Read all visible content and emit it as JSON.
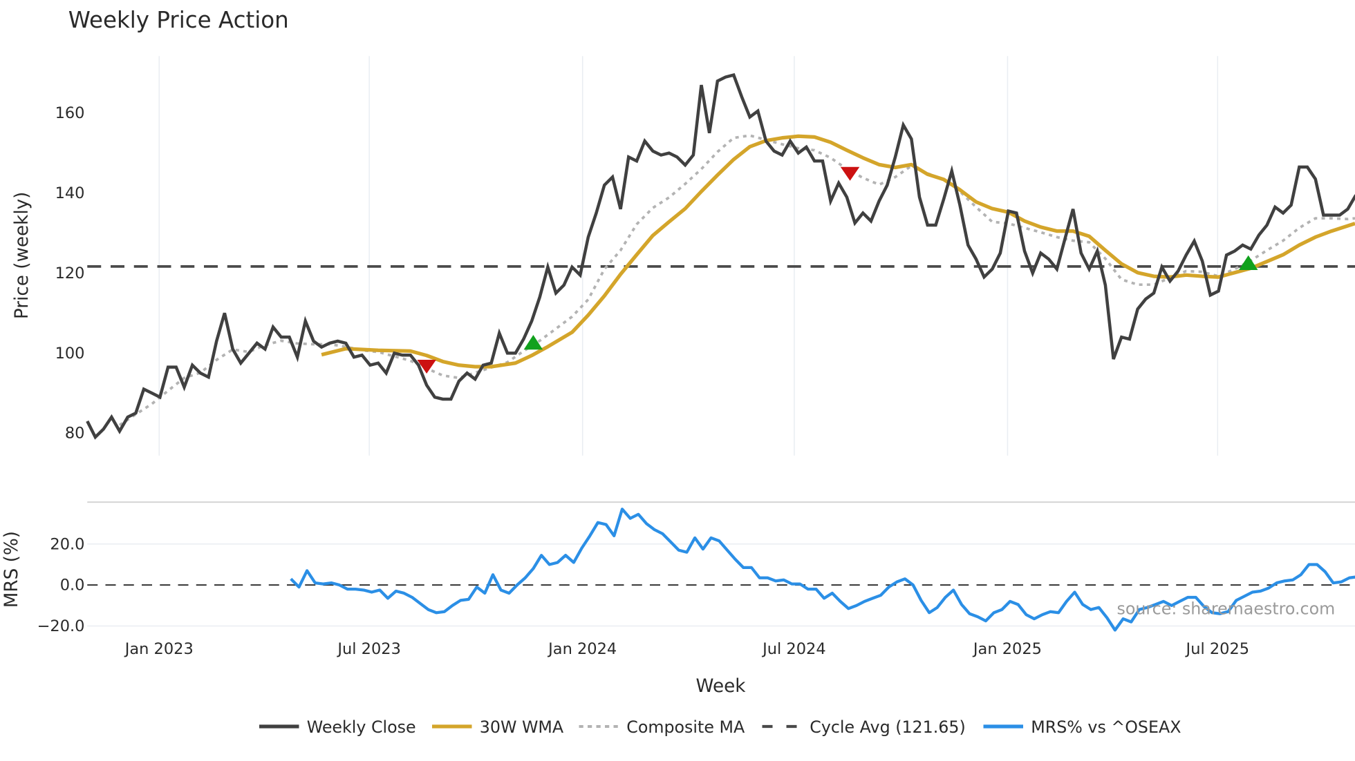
{
  "title": "Weekly Price Action",
  "source_note": "source: sharemaestro.com",
  "xaxis": {
    "label": "Week",
    "ticks": [
      {
        "label": "Jan 2023",
        "week_index": 8.9
      },
      {
        "label": "Jul 2023",
        "week_index": 34.9
      },
      {
        "label": "Jan 2024",
        "week_index": 61.3
      },
      {
        "label": "Jul 2024",
        "week_index": 87.5
      },
      {
        "label": "Jan 2025",
        "week_index": 113.9
      },
      {
        "label": "Jul 2025",
        "week_index": 139.9
      }
    ]
  },
  "price_axis": {
    "label": "Price (weekly)",
    "ticks": [
      "80",
      "100",
      "120",
      "140",
      "160"
    ]
  },
  "mrs_axis": {
    "label": "MRS (%)",
    "ticks": [
      "−20.0",
      "0.0",
      "20.0"
    ]
  },
  "legend": [
    {
      "label": "Weekly Close",
      "color": "#404040",
      "style": "solid"
    },
    {
      "label": "30W WMA",
      "color": "#d4a52a",
      "style": "solid"
    },
    {
      "label": "Composite MA",
      "color": "#b3b3b3",
      "style": "dotted"
    },
    {
      "label": "Cycle Avg (121.65)",
      "color": "#4a4a4a",
      "style": "dashed"
    },
    {
      "label": "MRS% vs ^OSEAX",
      "color": "#2b8fe6",
      "style": "solid"
    }
  ],
  "chart_data": [
    {
      "type": "line",
      "title": "Weekly Price Action",
      "xlabel": "Week",
      "ylabel": "Price (weekly)",
      "ylim": [
        75,
        175
      ],
      "x_range": [
        "Nov 2022",
        "Oct 2025"
      ],
      "grid": true,
      "legend_position": "bottom",
      "series": [
        {
          "name": "Weekly Close",
          "color": "#404040",
          "start_index": 0,
          "values": [
            83,
            79,
            81,
            84,
            80.5,
            84,
            85,
            91,
            90,
            89,
            96.5,
            96.5,
            91.5,
            97,
            95,
            94,
            103,
            110,
            101,
            97.5,
            100,
            102.5,
            101,
            106.5,
            104,
            104,
            99,
            108,
            103,
            101.5,
            102.5,
            103,
            102.5,
            99,
            99.5,
            97,
            97.5,
            95,
            100,
            99.5,
            99.5,
            97,
            92,
            89,
            88.5,
            88.5,
            93,
            95,
            93.5,
            97,
            97.5,
            105,
            100,
            100,
            103.5,
            108,
            114,
            121.5,
            115,
            117,
            121.5,
            119.5,
            129,
            135,
            142,
            144,
            136,
            149,
            148,
            153,
            150.5,
            149.5,
            150,
            149,
            147,
            149.5,
            167,
            155,
            168,
            169,
            169.5,
            164,
            159,
            160.5,
            153,
            150.5,
            149.5,
            153,
            150,
            151.5,
            148,
            148,
            138,
            142.5,
            139,
            132.5,
            135,
            133,
            138,
            142,
            149,
            157,
            153.5,
            139,
            132,
            132,
            138.5,
            145.5,
            137,
            127,
            123.5,
            119,
            121,
            125,
            135.5,
            135,
            125.5,
            120,
            125,
            123.5,
            121,
            128.5,
            136,
            125,
            121,
            125.5,
            117,
            98.5,
            104,
            103.5,
            111,
            113.5,
            115,
            121.5,
            118,
            120.5,
            124.5,
            128,
            123,
            114.5,
            115.5,
            124.5,
            125.5,
            127,
            126,
            129.5,
            132,
            136.5,
            135,
            137,
            146.5,
            146.5,
            143.5,
            134.5,
            134.5,
            134.5,
            136,
            139.5
          ]
        },
        {
          "name": "30W WMA",
          "color": "#d4a52a",
          "points": [
            [
              29,
              99.6
            ],
            [
              32,
              101.1
            ],
            [
              36,
              100.7
            ],
            [
              40,
              100.5
            ],
            [
              42,
              99.4
            ],
            [
              44,
              97.9
            ],
            [
              46,
              97
            ],
            [
              48,
              96.6
            ],
            [
              50,
              96.6
            ],
            [
              53,
              97.5
            ],
            [
              55,
              99.4
            ],
            [
              57,
              101.6
            ],
            [
              60,
              105.2
            ],
            [
              62,
              109.5
            ],
            [
              64,
              114.3
            ],
            [
              66,
              119.7
            ],
            [
              68,
              124.6
            ],
            [
              70,
              129.4
            ],
            [
              72,
              132.8
            ],
            [
              74,
              136.1
            ],
            [
              76,
              140.4
            ],
            [
              78,
              144.5
            ],
            [
              80,
              148.4
            ],
            [
              82,
              151.6
            ],
            [
              84,
              153.1
            ],
            [
              86,
              153.8
            ],
            [
              88,
              154.2
            ],
            [
              90,
              154
            ],
            [
              92,
              152.7
            ],
            [
              94,
              150.7
            ],
            [
              96,
              148.8
            ],
            [
              98,
              147.1
            ],
            [
              100,
              146.4
            ],
            [
              102,
              147.1
            ],
            [
              104,
              144.7
            ],
            [
              106,
              143.4
            ],
            [
              108,
              140.8
            ],
            [
              110,
              137.8
            ],
            [
              112,
              136.1
            ],
            [
              114,
              135.2
            ],
            [
              116,
              133
            ],
            [
              118,
              131.5
            ],
            [
              120,
              130.5
            ],
            [
              122,
              130.5
            ],
            [
              124,
              129.2
            ],
            [
              126,
              125.7
            ],
            [
              128,
              122.3
            ],
            [
              130,
              120.1
            ],
            [
              132,
              119.2
            ],
            [
              134,
              119
            ],
            [
              136,
              119.5
            ],
            [
              138,
              119.2
            ],
            [
              140,
              119
            ],
            [
              142,
              120.1
            ],
            [
              144,
              121.2
            ],
            [
              146,
              122.9
            ],
            [
              148,
              124.6
            ],
            [
              150,
              127
            ],
            [
              152,
              129
            ],
            [
              154,
              130.5
            ],
            [
              156.9,
              132.4
            ]
          ]
        },
        {
          "name": "Composite MA",
          "color": "#b3b3b3",
          "points": [
            [
              4,
              82
            ],
            [
              6,
              84.7
            ],
            [
              8,
              87.3
            ],
            [
              10,
              90.6
            ],
            [
              12,
              93.8
            ],
            [
              14,
              95.1
            ],
            [
              16,
              98.3
            ],
            [
              18,
              100.9
            ],
            [
              20,
              100.3
            ],
            [
              22,
              102
            ],
            [
              24,
              103.1
            ],
            [
              26,
              102.4
            ],
            [
              28,
              102.2
            ],
            [
              30,
              102.2
            ],
            [
              32,
              101.6
            ],
            [
              34,
              100.7
            ],
            [
              36,
              100.3
            ],
            [
              38,
              99.2
            ],
            [
              40,
              98.1
            ],
            [
              42,
              96.2
            ],
            [
              44,
              94.4
            ],
            [
              46,
              93.8
            ],
            [
              48,
              95.1
            ],
            [
              50,
              96.4
            ],
            [
              52,
              97.7
            ],
            [
              54,
              100.5
            ],
            [
              56,
              103.1
            ],
            [
              58,
              106.1
            ],
            [
              60,
              109.1
            ],
            [
              62,
              113.4
            ],
            [
              64,
              121
            ],
            [
              66,
              125.7
            ],
            [
              68,
              132.2
            ],
            [
              70,
              136.3
            ],
            [
              72,
              138.9
            ],
            [
              74,
              142.3
            ],
            [
              76,
              146
            ],
            [
              78,
              150.3
            ],
            [
              80,
              153.8
            ],
            [
              82,
              154.4
            ],
            [
              84,
              153.3
            ],
            [
              86,
              152.2
            ],
            [
              88,
              151.2
            ],
            [
              90,
              150.7
            ],
            [
              92,
              148.8
            ],
            [
              94,
              146
            ],
            [
              96,
              143.8
            ],
            [
              98,
              142.1
            ],
            [
              100,
              144
            ],
            [
              102,
              146.8
            ],
            [
              104,
              144.9
            ],
            [
              106,
              143.4
            ],
            [
              108,
              140.4
            ],
            [
              110,
              136.5
            ],
            [
              112,
              132.8
            ],
            [
              114,
              132.4
            ],
            [
              116,
              131.3
            ],
            [
              118,
              130.2
            ],
            [
              120,
              129
            ],
            [
              122,
              128.1
            ],
            [
              124,
              127.7
            ],
            [
              126,
              123.6
            ],
            [
              128,
              118.4
            ],
            [
              130,
              117.1
            ],
            [
              132,
              117.1
            ],
            [
              134,
              118.8
            ],
            [
              136,
              120.5
            ],
            [
              138,
              120.3
            ],
            [
              140,
              119.2
            ],
            [
              142,
              121
            ],
            [
              144,
              123.1
            ],
            [
              146,
              125.7
            ],
            [
              148,
              128.1
            ],
            [
              150,
              131.3
            ],
            [
              152,
              133.7
            ],
            [
              154,
              133.7
            ],
            [
              156,
              133.5
            ],
            [
              156.9,
              133.7
            ]
          ]
        },
        {
          "name": "Cycle Avg (121.65)",
          "color": "#4a4a4a",
          "constant": 121.65
        }
      ],
      "signals": [
        {
          "type": "sell",
          "marker": "down-triangle",
          "color": "#cc1111",
          "week_index": 42.0,
          "value": 96.6
        },
        {
          "type": "buy",
          "marker": "up-triangle",
          "color": "#11a11d",
          "week_index": 55.2,
          "value": 102.6
        },
        {
          "type": "sell",
          "marker": "down-triangle",
          "color": "#cc1111",
          "week_index": 94.4,
          "value": 144.8
        },
        {
          "type": "buy",
          "marker": "up-triangle",
          "color": "#11a11d",
          "week_index": 143.7,
          "value": 122.5
        }
      ]
    },
    {
      "type": "line",
      "title": "",
      "xlabel": "Week",
      "ylabel": "MRS (%)",
      "ylim": [
        -22,
        38
      ],
      "grid": true,
      "reference_line": 0,
      "series": [
        {
          "name": "MRS% vs ^OSEAX",
          "color": "#2b8fe6",
          "start_index": 25.2,
          "values": [
            3,
            -1,
            7,
            1,
            0.5,
            1,
            0,
            -2,
            -2,
            -2.5,
            -3.5,
            -2.5,
            -6.5,
            -3,
            -4,
            -6,
            -9,
            -12,
            -13.5,
            -13,
            -10,
            -7.5,
            -7,
            -1,
            -4,
            5,
            -2.5,
            -4,
            0,
            3.5,
            8,
            14.5,
            10,
            11,
            14.5,
            11,
            18,
            24,
            30.5,
            29.5,
            24,
            37,
            32.5,
            34.5,
            30,
            27,
            25,
            21,
            17,
            16,
            23,
            17.5,
            23,
            21.5,
            17,
            12.5,
            8.5,
            8.5,
            3.5,
            3.5,
            2,
            2.5,
            0.5,
            0.5,
            -2,
            -2,
            -6.5,
            -4,
            -8,
            -11.5,
            -10,
            -8,
            -6.5,
            -5,
            -1,
            1.5,
            3,
            0,
            -7.5,
            -13.5,
            -11,
            -6,
            -2.5,
            -9.5,
            -14,
            -15.5,
            -17.5,
            -13.5,
            -12,
            -8,
            -9.5,
            -14.5,
            -16.5,
            -14.5,
            -13,
            -13.5,
            -8,
            -3.5,
            -9.5,
            -12,
            -11,
            -16,
            -22,
            -16.5,
            -18,
            -12,
            -11,
            -9.5,
            -8,
            -10,
            -8,
            -6,
            -6,
            -10.5,
            -13.5,
            -14,
            -13,
            -7.5,
            -5.5,
            -3.5,
            -3,
            -1.5,
            1,
            2,
            2.5,
            5,
            10,
            10,
            6.5,
            1,
            1.5,
            3.5,
            4,
            5.5
          ]
        }
      ]
    }
  ]
}
